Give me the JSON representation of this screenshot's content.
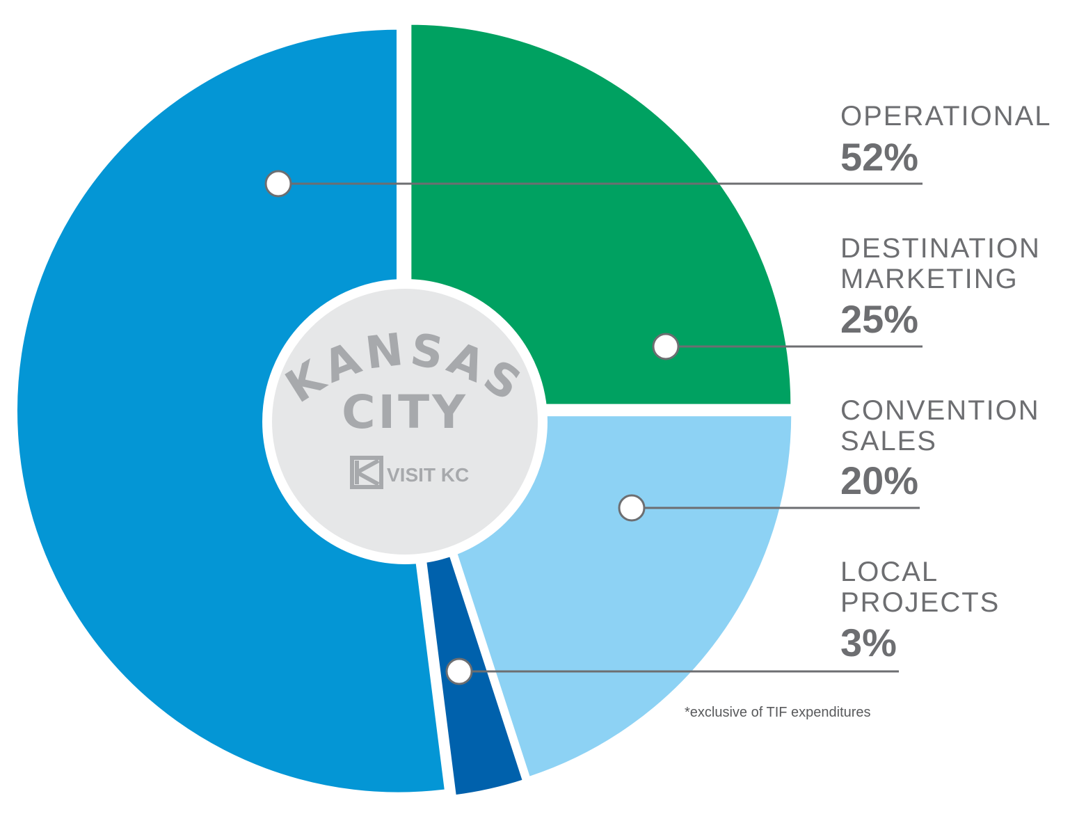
{
  "chart_data": {
    "type": "pie",
    "style": "donut-exploded",
    "title": "",
    "center": {
      "line1": "KANSAS",
      "line2": "CITY",
      "brand": "VISIT KC"
    },
    "slices": [
      {
        "name_lines": [
          "OPERATIONAL"
        ],
        "value": 52,
        "label": "52%",
        "color": "#0496d5"
      },
      {
        "name_lines": [
          "DESTINATION",
          "MARKETING"
        ],
        "value": 25,
        "label": "25%",
        "color": "#00a161"
      },
      {
        "name_lines": [
          "CONVENTION",
          "SALES"
        ],
        "value": 20,
        "label": "20%",
        "color": "#8dd2f4"
      },
      {
        "name_lines": [
          "LOCAL",
          "PROJECTS"
        ],
        "value": 3,
        "label": "3%",
        "color": "#0061ac"
      }
    ],
    "footnote": "*exclusive of TIF expenditures",
    "text_color": "#6d6e71",
    "center_fill": "#e6e7e8",
    "center_text_color": "#a7a9ac"
  }
}
